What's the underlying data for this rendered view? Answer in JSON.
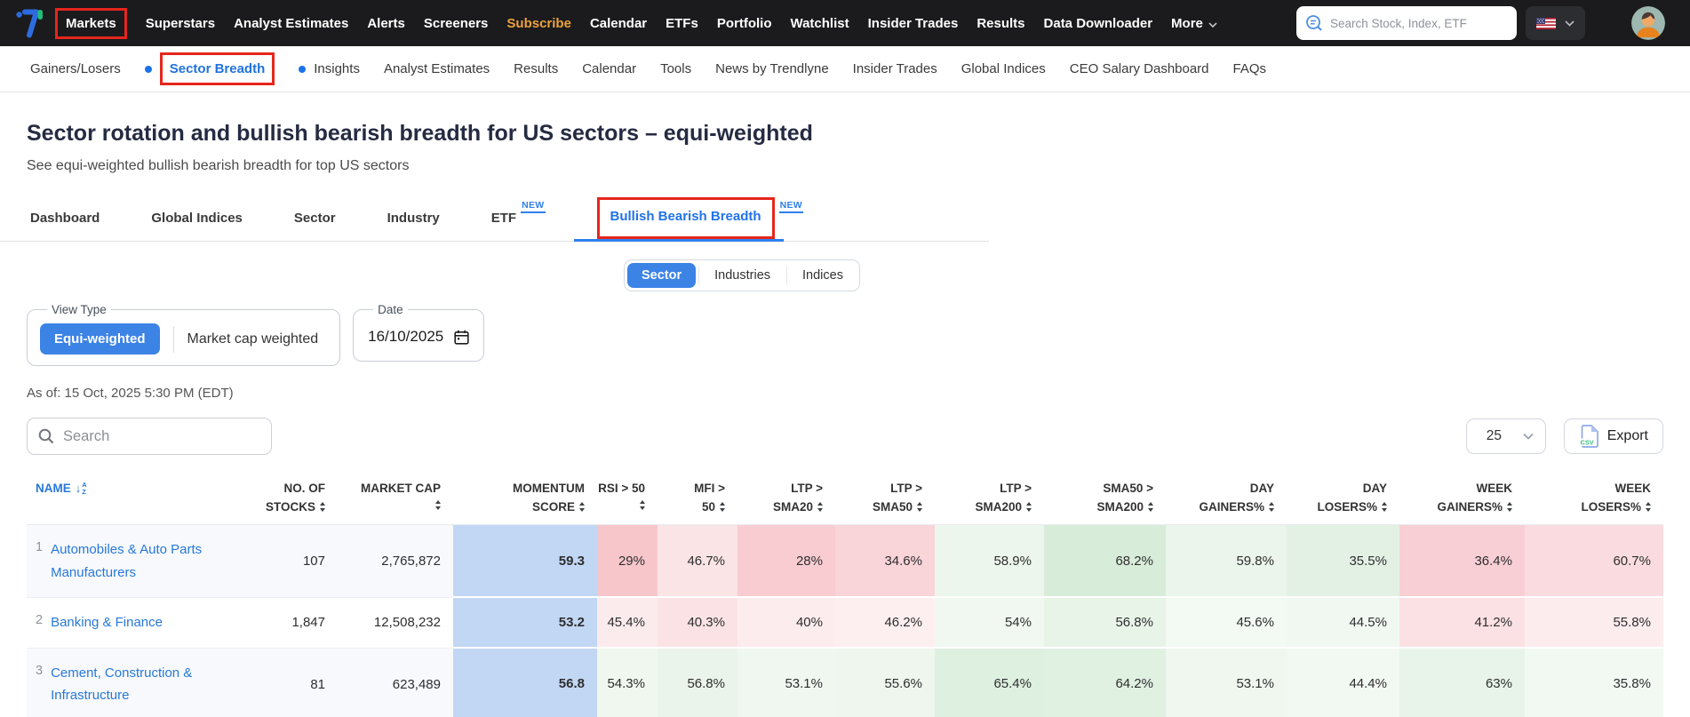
{
  "colors": {
    "accent_blue": "#2f80ed",
    "annotation_red": "#e5261d",
    "subscribe_orange": "#eda23a",
    "momentum_blue": "#c2d7f3",
    "topnav_bg": "#1b1b1d"
  },
  "topnav": {
    "search_placeholder": "Search Stock, Index, ETF",
    "items": [
      {
        "label": "Markets",
        "annotated": true
      },
      {
        "label": "Superstars"
      },
      {
        "label": "Analyst Estimates"
      },
      {
        "label": "Alerts"
      },
      {
        "label": "Screeners"
      },
      {
        "label": "Subscribe",
        "accent": true
      },
      {
        "label": "Calendar"
      },
      {
        "label": "ETFs"
      },
      {
        "label": "Portfolio"
      },
      {
        "label": "Watchlist"
      },
      {
        "label": "Insider Trades"
      },
      {
        "label": "Results"
      },
      {
        "label": "Data Downloader"
      },
      {
        "label": "More",
        "chevron": true
      }
    ]
  },
  "subnav": {
    "items": [
      {
        "label": "Gainers/Losers"
      },
      {
        "label": "Sector Breadth",
        "dot": true,
        "active": true,
        "annotated": true
      },
      {
        "label": "Insights",
        "dot": true
      },
      {
        "label": "Analyst Estimates"
      },
      {
        "label": "Results"
      },
      {
        "label": "Calendar"
      },
      {
        "label": "Tools"
      },
      {
        "label": "News by Trendlyne"
      },
      {
        "label": "Insider Trades"
      },
      {
        "label": "Global Indices"
      },
      {
        "label": "CEO Salary Dashboard"
      },
      {
        "label": "FAQs"
      }
    ]
  },
  "page": {
    "title": "Sector rotation and bullish bearish breadth for US sectors – equi-weighted",
    "subtitle": "See equi-weighted bullish bearish breadth for top US sectors"
  },
  "tabs": {
    "items": [
      {
        "label": "Dashboard"
      },
      {
        "label": "Global Indices"
      },
      {
        "label": "Sector"
      },
      {
        "label": "Industry"
      },
      {
        "label": "ETF",
        "badge": "NEW"
      },
      {
        "label": "Bullish Bearish Breadth",
        "badge": "NEW",
        "active": true,
        "annotated": true
      }
    ]
  },
  "segmented": {
    "options": [
      "Sector",
      "Industries",
      "Indices"
    ],
    "active_index": 0
  },
  "filters": {
    "view_type": {
      "legend": "View Type",
      "options": [
        {
          "label": "Equi-weighted",
          "active": true
        },
        {
          "label": "Market cap weighted"
        }
      ]
    },
    "date": {
      "legend": "Date",
      "value": "16/10/2025"
    }
  },
  "as_of": "As of: 15 Oct, 2025 5:30 PM (EDT)",
  "toolbar": {
    "search_placeholder": "Search",
    "page_size": "25",
    "export_label": "Export"
  },
  "table": {
    "columns": [
      {
        "l1": "NAME",
        "l2": "",
        "sort": "az"
      },
      {
        "l1": "NO. OF",
        "l2": "STOCKS",
        "sort": "ud"
      },
      {
        "l1": "MARKET CAP",
        "l2": "",
        "sort": "ud"
      },
      {
        "l1": "MOMENTUM",
        "l2": "SCORE",
        "sort": "ud"
      },
      {
        "l1": "RSI > 50",
        "l2": "",
        "sort": "ud"
      },
      {
        "l1": "MFI >",
        "l2": "50",
        "sort": "ud"
      },
      {
        "l1": "LTP >",
        "l2": "SMA20",
        "sort": "ud"
      },
      {
        "l1": "LTP >",
        "l2": "SMA50",
        "sort": "ud"
      },
      {
        "l1": "LTP >",
        "l2": "SMA200",
        "sort": "ud"
      },
      {
        "l1": "SMA50 >",
        "l2": "SMA200",
        "sort": "ud"
      },
      {
        "l1": "DAY",
        "l2": "GAINERS%",
        "sort": "ud"
      },
      {
        "l1": "DAY",
        "l2": "LOSERS%",
        "sort": "ud"
      },
      {
        "l1": "WEEK",
        "l2": "GAINERS%",
        "sort": "ud"
      },
      {
        "l1": "WEEK",
        "l2": "LOSERS%",
        "sort": "ud"
      }
    ],
    "rows": [
      {
        "num": "1",
        "name": "Automobiles & Auto Parts Manufacturers",
        "stocks": "107",
        "market_cap": "2,765,872",
        "cells": [
          {
            "v": "59.3",
            "bg": "#c2d7f3"
          },
          {
            "v": "29%",
            "bg": "#f7c6cb"
          },
          {
            "v": "46.7%",
            "bg": "#fbe4e6"
          },
          {
            "v": "28%",
            "bg": "#f8ccd1"
          },
          {
            "v": "34.6%",
            "bg": "#f9d4d8"
          },
          {
            "v": "58.9%",
            "bg": "#ecf6ec"
          },
          {
            "v": "68.2%",
            "bg": "#d8edd9"
          },
          {
            "v": "59.8%",
            "bg": "#ebf5eb"
          },
          {
            "v": "35.5%",
            "bg": "#e3f1e4"
          },
          {
            "v": "36.4%",
            "bg": "#f8cfd4"
          },
          {
            "v": "60.7%",
            "bg": "#fadce0"
          }
        ]
      },
      {
        "num": "2",
        "name": "Banking & Finance",
        "stocks": "1,847",
        "market_cap": "12,508,232",
        "cells": [
          {
            "v": "53.2",
            "bg": "#c2d7f3"
          },
          {
            "v": "45.4%",
            "bg": "#fcebed"
          },
          {
            "v": "40.3%",
            "bg": "#fbe3e5"
          },
          {
            "v": "40%",
            "bg": "#fdeced"
          },
          {
            "v": "46.2%",
            "bg": "#fdeff0"
          },
          {
            "v": "54%",
            "bg": "#f1f8f1"
          },
          {
            "v": "56.8%",
            "bg": "#e9f4e9"
          },
          {
            "v": "45.6%",
            "bg": "#f3f9f3"
          },
          {
            "v": "44.5%",
            "bg": "#f1f8f2"
          },
          {
            "v": "41.2%",
            "bg": "#fbe1e3"
          },
          {
            "v": "55.8%",
            "bg": "#fcecee"
          }
        ]
      },
      {
        "num": "3",
        "name": "Cement, Construction & Infrastructure",
        "stocks": "81",
        "market_cap": "623,489",
        "cells": [
          {
            "v": "56.8",
            "bg": "#c2d7f3"
          },
          {
            "v": "54.3%",
            "bg": "#eff7ef"
          },
          {
            "v": "56.8%",
            "bg": "#eaf4ea"
          },
          {
            "v": "53.1%",
            "bg": "#f0f7f0"
          },
          {
            "v": "55.6%",
            "bg": "#eef6ee"
          },
          {
            "v": "65.4%",
            "bg": "#def0df"
          },
          {
            "v": "64.2%",
            "bg": "#e0f1e1"
          },
          {
            "v": "53.1%",
            "bg": "#eff7ef"
          },
          {
            "v": "44.4%",
            "bg": "#f2f8f2"
          },
          {
            "v": "63%",
            "bg": "#e8f4e9"
          },
          {
            "v": "35.8%",
            "bg": "#f2f9f3"
          }
        ]
      }
    ]
  }
}
